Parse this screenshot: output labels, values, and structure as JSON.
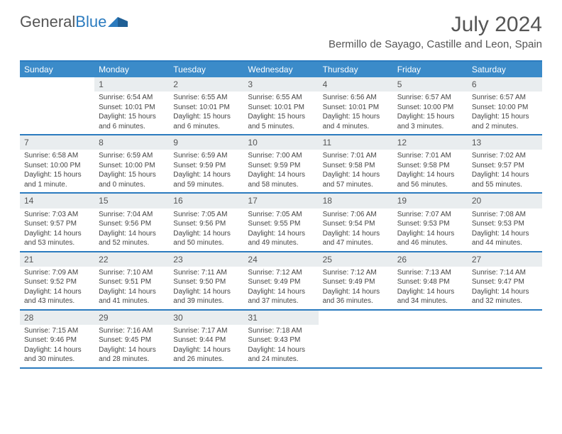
{
  "brand": {
    "word1": "General",
    "word2": "Blue"
  },
  "title": "July 2024",
  "location": "Bermillo de Sayago, Castille and Leon, Spain",
  "colors": {
    "accent": "#2b7bbf",
    "header_bg": "#3b8bc9",
    "daynum_bg": "#e9edef",
    "text": "#444444",
    "title_text": "#555555",
    "background": "#ffffff"
  },
  "dow": [
    "Sunday",
    "Monday",
    "Tuesday",
    "Wednesday",
    "Thursday",
    "Friday",
    "Saturday"
  ],
  "weeks": [
    [
      {
        "n": "",
        "sr": "",
        "ss": "",
        "dl": ""
      },
      {
        "n": "1",
        "sr": "Sunrise: 6:54 AM",
        "ss": "Sunset: 10:01 PM",
        "dl": "Daylight: 15 hours and 6 minutes."
      },
      {
        "n": "2",
        "sr": "Sunrise: 6:55 AM",
        "ss": "Sunset: 10:01 PM",
        "dl": "Daylight: 15 hours and 6 minutes."
      },
      {
        "n": "3",
        "sr": "Sunrise: 6:55 AM",
        "ss": "Sunset: 10:01 PM",
        "dl": "Daylight: 15 hours and 5 minutes."
      },
      {
        "n": "4",
        "sr": "Sunrise: 6:56 AM",
        "ss": "Sunset: 10:01 PM",
        "dl": "Daylight: 15 hours and 4 minutes."
      },
      {
        "n": "5",
        "sr": "Sunrise: 6:57 AM",
        "ss": "Sunset: 10:00 PM",
        "dl": "Daylight: 15 hours and 3 minutes."
      },
      {
        "n": "6",
        "sr": "Sunrise: 6:57 AM",
        "ss": "Sunset: 10:00 PM",
        "dl": "Daylight: 15 hours and 2 minutes."
      }
    ],
    [
      {
        "n": "7",
        "sr": "Sunrise: 6:58 AM",
        "ss": "Sunset: 10:00 PM",
        "dl": "Daylight: 15 hours and 1 minute."
      },
      {
        "n": "8",
        "sr": "Sunrise: 6:59 AM",
        "ss": "Sunset: 10:00 PM",
        "dl": "Daylight: 15 hours and 0 minutes."
      },
      {
        "n": "9",
        "sr": "Sunrise: 6:59 AM",
        "ss": "Sunset: 9:59 PM",
        "dl": "Daylight: 14 hours and 59 minutes."
      },
      {
        "n": "10",
        "sr": "Sunrise: 7:00 AM",
        "ss": "Sunset: 9:59 PM",
        "dl": "Daylight: 14 hours and 58 minutes."
      },
      {
        "n": "11",
        "sr": "Sunrise: 7:01 AM",
        "ss": "Sunset: 9:58 PM",
        "dl": "Daylight: 14 hours and 57 minutes."
      },
      {
        "n": "12",
        "sr": "Sunrise: 7:01 AM",
        "ss": "Sunset: 9:58 PM",
        "dl": "Daylight: 14 hours and 56 minutes."
      },
      {
        "n": "13",
        "sr": "Sunrise: 7:02 AM",
        "ss": "Sunset: 9:57 PM",
        "dl": "Daylight: 14 hours and 55 minutes."
      }
    ],
    [
      {
        "n": "14",
        "sr": "Sunrise: 7:03 AM",
        "ss": "Sunset: 9:57 PM",
        "dl": "Daylight: 14 hours and 53 minutes."
      },
      {
        "n": "15",
        "sr": "Sunrise: 7:04 AM",
        "ss": "Sunset: 9:56 PM",
        "dl": "Daylight: 14 hours and 52 minutes."
      },
      {
        "n": "16",
        "sr": "Sunrise: 7:05 AM",
        "ss": "Sunset: 9:56 PM",
        "dl": "Daylight: 14 hours and 50 minutes."
      },
      {
        "n": "17",
        "sr": "Sunrise: 7:05 AM",
        "ss": "Sunset: 9:55 PM",
        "dl": "Daylight: 14 hours and 49 minutes."
      },
      {
        "n": "18",
        "sr": "Sunrise: 7:06 AM",
        "ss": "Sunset: 9:54 PM",
        "dl": "Daylight: 14 hours and 47 minutes."
      },
      {
        "n": "19",
        "sr": "Sunrise: 7:07 AM",
        "ss": "Sunset: 9:53 PM",
        "dl": "Daylight: 14 hours and 46 minutes."
      },
      {
        "n": "20",
        "sr": "Sunrise: 7:08 AM",
        "ss": "Sunset: 9:53 PM",
        "dl": "Daylight: 14 hours and 44 minutes."
      }
    ],
    [
      {
        "n": "21",
        "sr": "Sunrise: 7:09 AM",
        "ss": "Sunset: 9:52 PM",
        "dl": "Daylight: 14 hours and 43 minutes."
      },
      {
        "n": "22",
        "sr": "Sunrise: 7:10 AM",
        "ss": "Sunset: 9:51 PM",
        "dl": "Daylight: 14 hours and 41 minutes."
      },
      {
        "n": "23",
        "sr": "Sunrise: 7:11 AM",
        "ss": "Sunset: 9:50 PM",
        "dl": "Daylight: 14 hours and 39 minutes."
      },
      {
        "n": "24",
        "sr": "Sunrise: 7:12 AM",
        "ss": "Sunset: 9:49 PM",
        "dl": "Daylight: 14 hours and 37 minutes."
      },
      {
        "n": "25",
        "sr": "Sunrise: 7:12 AM",
        "ss": "Sunset: 9:49 PM",
        "dl": "Daylight: 14 hours and 36 minutes."
      },
      {
        "n": "26",
        "sr": "Sunrise: 7:13 AM",
        "ss": "Sunset: 9:48 PM",
        "dl": "Daylight: 14 hours and 34 minutes."
      },
      {
        "n": "27",
        "sr": "Sunrise: 7:14 AM",
        "ss": "Sunset: 9:47 PM",
        "dl": "Daylight: 14 hours and 32 minutes."
      }
    ],
    [
      {
        "n": "28",
        "sr": "Sunrise: 7:15 AM",
        "ss": "Sunset: 9:46 PM",
        "dl": "Daylight: 14 hours and 30 minutes."
      },
      {
        "n": "29",
        "sr": "Sunrise: 7:16 AM",
        "ss": "Sunset: 9:45 PM",
        "dl": "Daylight: 14 hours and 28 minutes."
      },
      {
        "n": "30",
        "sr": "Sunrise: 7:17 AM",
        "ss": "Sunset: 9:44 PM",
        "dl": "Daylight: 14 hours and 26 minutes."
      },
      {
        "n": "31",
        "sr": "Sunrise: 7:18 AM",
        "ss": "Sunset: 9:43 PM",
        "dl": "Daylight: 14 hours and 24 minutes."
      },
      {
        "n": "",
        "sr": "",
        "ss": "",
        "dl": ""
      },
      {
        "n": "",
        "sr": "",
        "ss": "",
        "dl": ""
      },
      {
        "n": "",
        "sr": "",
        "ss": "",
        "dl": ""
      }
    ]
  ]
}
